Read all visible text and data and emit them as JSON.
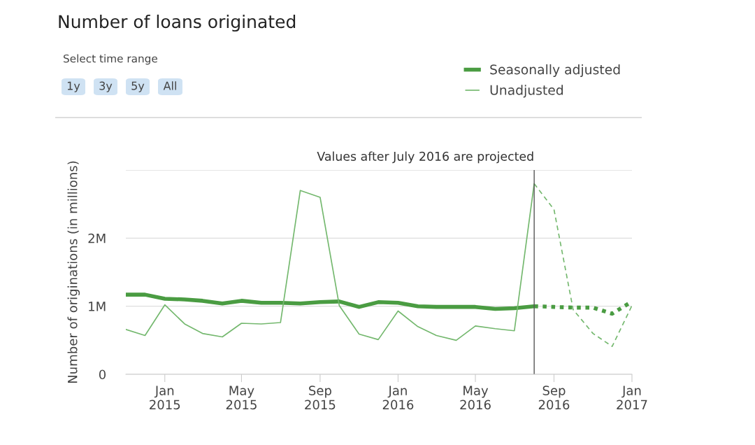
{
  "chart_data": {
    "type": "line",
    "title": "Number of loans originated",
    "ylabel": "Number of originations (in millions)",
    "annotations": [
      "Select time range",
      "1y",
      "3y",
      "5y",
      "All"
    ],
    "series": [
      {
        "name": "Seasonally adjusted",
        "color": "#4a9c42",
        "line_style": "solid",
        "x": [
          "2014-11",
          "2014-12",
          "2015-01",
          "2015-02",
          "2015-03",
          "2015-04",
          "2015-05",
          "2015-06",
          "2015-07",
          "2015-08",
          "2015-09",
          "2015-10",
          "2015-11",
          "2015-12",
          "2016-01",
          "2016-02",
          "2016-03",
          "2016-04",
          "2016-05",
          "2016-06",
          "2016-07",
          "2016-08"
        ],
        "values": [
          1.17,
          1.17,
          1.11,
          1.1,
          1.08,
          1.04,
          1.08,
          1.05,
          1.05,
          1.04,
          1.06,
          1.07,
          0.99,
          1.06,
          1.05,
          1.0,
          0.99,
          0.99,
          0.99,
          0.96,
          0.97,
          1.0
        ]
      },
      {
        "name": "Unadjusted",
        "color": "#74b86e",
        "line_style": "solid",
        "x": [
          "2014-11",
          "2014-12",
          "2015-01",
          "2015-02",
          "2015-03",
          "2015-04",
          "2015-05",
          "2015-06",
          "2015-07",
          "2015-08",
          "2015-09",
          "2015-10",
          "2015-11",
          "2015-12",
          "2016-01",
          "2016-02",
          "2016-03",
          "2016-04",
          "2016-05",
          "2016-06",
          "2016-07",
          "2016-08"
        ],
        "values": [
          0.66,
          0.57,
          1.02,
          0.74,
          0.6,
          0.55,
          0.75,
          0.74,
          0.76,
          2.7,
          2.6,
          1.01,
          0.59,
          0.51,
          0.93,
          0.7,
          0.57,
          0.5,
          0.71,
          0.67,
          0.64,
          2.8
        ]
      },
      {
        "color": "#4a9c42",
        "line_style": "dotted",
        "x": [
          "2016-08",
          "2016-09",
          "2016-10",
          "2016-11",
          "2016-12",
          "2017-01"
        ],
        "values": [
          1.0,
          0.99,
          0.98,
          0.98,
          0.89,
          1.07
        ]
      },
      {
        "color": "#74b86e",
        "line_style": "dashed",
        "x": [
          "2016-08",
          "2016-09",
          "2016-10",
          "2016-11",
          "2016-12",
          "2017-01"
        ],
        "values": [
          2.8,
          2.42,
          0.95,
          0.6,
          0.41,
          1.01
        ]
      }
    ],
    "xlim": [
      "2014-11",
      "2017-01"
    ],
    "xticks": [
      {
        "value": "2015-01",
        "label": "Jan\n2015"
      },
      {
        "value": "2015-05",
        "label": "May\n2015"
      },
      {
        "value": "2015-09",
        "label": "Sep\n2015"
      },
      {
        "value": "2016-01",
        "label": "Jan\n2016"
      },
      {
        "value": "2016-05",
        "label": "May\n2016"
      },
      {
        "value": "2016-09",
        "label": "Sep\n2016"
      },
      {
        "value": "2017-01",
        "label": "Jan\n2017"
      }
    ],
    "ylim": [
      0,
      3
    ],
    "yticks": [
      0,
      {
        "value": 1,
        "label": "1M"
      },
      {
        "value": 2,
        "label": "2M"
      },
      {
        "value": 3,
        "label": null
      }
    ],
    "ref_lines": [
      {
        "axis": "x",
        "value": "2016-08",
        "label": "Values after July 2016 are projected",
        "color": "#555555"
      }
    ],
    "grid": "y",
    "legend": "top right",
    "marker": "none"
  }
}
